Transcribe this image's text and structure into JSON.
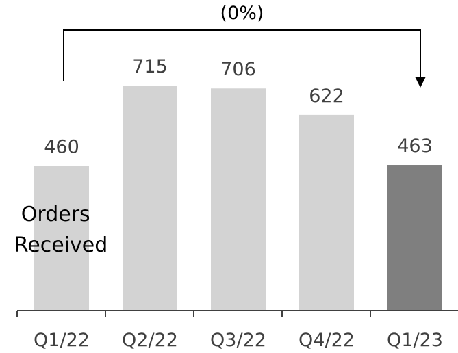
{
  "chart_data": {
    "type": "bar",
    "title": "",
    "xlabel": "",
    "ylabel": "",
    "categories": [
      "Q1/22",
      "Q2/22",
      "Q3/22",
      "Q4/22",
      "Q1/23"
    ],
    "series": [
      {
        "name": "Orders Received",
        "values": [
          460,
          715,
          706,
          622,
          463
        ]
      }
    ],
    "value_labels": [
      "460",
      "715",
      "706",
      "622",
      "463"
    ],
    "series_label_lines": [
      "Orders",
      "Received"
    ],
    "ylim": [
      0,
      800
    ],
    "grid": false,
    "legend": "none",
    "annotation": {
      "text": "(0%)",
      "from_category": "Q1/22",
      "to_category": "Q1/23"
    },
    "colors": {
      "bar": "#d3d3d3",
      "highlight_bar": "#7f7f7f",
      "axis": "#404040",
      "annotation_line": "#000000"
    },
    "highlight_index": 4
  }
}
